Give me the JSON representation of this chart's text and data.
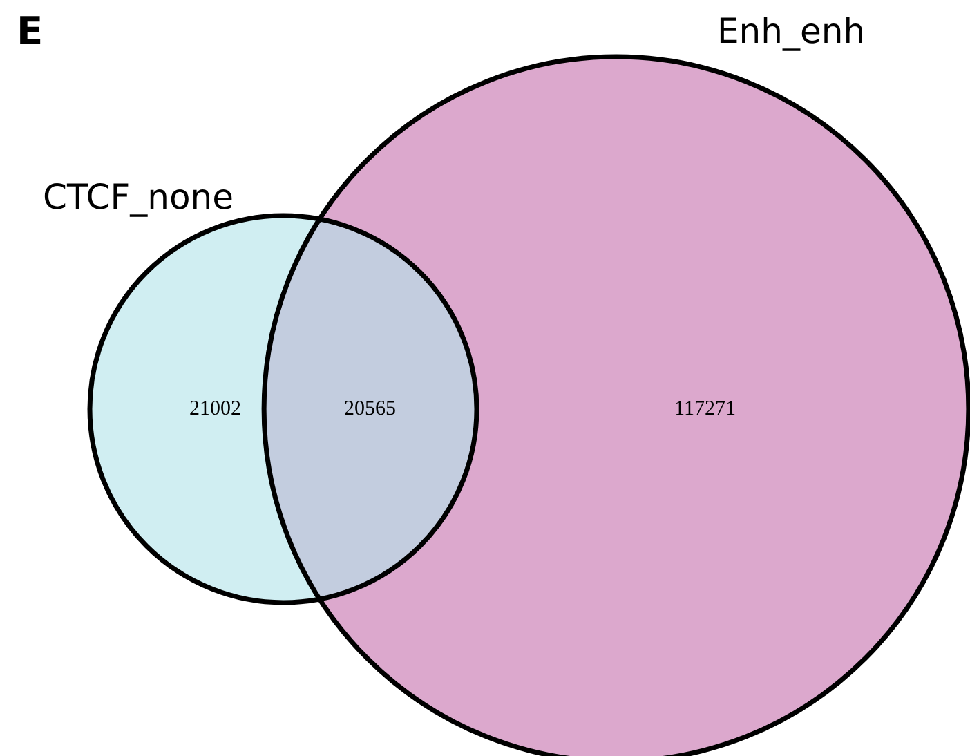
{
  "chart_data": {
    "type": "other",
    "title": "E",
    "categories": [
      "CTCF_none",
      "Enh_enh"
    ],
    "values": [
      21002,
      117271
    ],
    "colors": [
      "#b3e4ea",
      "#dca8cd"
    ],
    "data_labels": true,
    "annotations": [
      "20565"
    ]
  }
}
